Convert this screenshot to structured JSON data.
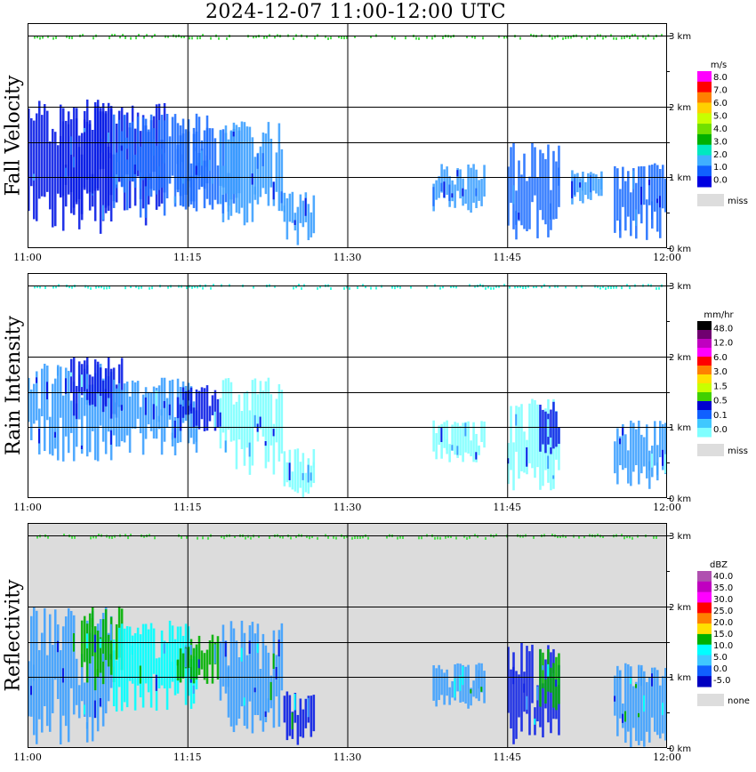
{
  "title": "2024-12-07   11:00-12:00 UTC",
  "x_ticks": [
    "11:00",
    "11:15",
    "11:30",
    "11:45",
    "12:00"
  ],
  "km_labels": [
    "3 km",
    "2 km",
    "1 km",
    "0 km"
  ],
  "chart_data": [
    {
      "type": "heatmap",
      "title": "Fall Velocity",
      "ylabel": "Fall Velocity",
      "x_range": [
        "11:00",
        "12:00"
      ],
      "y_range_km": [
        0,
        3
      ],
      "background": "#ffffff",
      "colorbar": {
        "unit": "m/s",
        "labels": [
          "8.0",
          "7.0",
          "6.0",
          "5.0",
          "4.0",
          "3.0",
          "2.0",
          "1.0",
          "0.0"
        ],
        "colors": [
          "#ff00ff",
          "#ff0000",
          "#ff8000",
          "#ffd000",
          "#c8ff00",
          "#70e000",
          "#00b000",
          "#00e8c0",
          "#40b0ff",
          "#1060ff",
          "#0000e0"
        ],
        "miss_label": "miss",
        "miss_color": "#dddddd"
      },
      "dominant_colors": [
        "#0a1ee6",
        "#1f6fff",
        "#3ca0ff"
      ],
      "echoes": [
        {
          "t0": 0,
          "t1": 8,
          "ytop": 2.1,
          "ybot": 0.2,
          "c": "#0a1ee6"
        },
        {
          "t0": 3,
          "t1": 13,
          "ytop": 2.05,
          "ybot": 0.3,
          "c": "#0a1ee6"
        },
        {
          "t0": 8,
          "t1": 17,
          "ytop": 1.9,
          "ybot": 0.4,
          "c": "#1f6fff"
        },
        {
          "t0": 14,
          "t1": 20,
          "ytop": 1.7,
          "ybot": 0.5,
          "c": "#1f6fff"
        },
        {
          "t0": 18,
          "t1": 24,
          "ytop": 1.8,
          "ybot": 0.3,
          "c": "#3ca0ff"
        },
        {
          "t0": 24,
          "t1": 27,
          "ytop": 0.8,
          "ybot": 0.0,
          "c": "#3ca0ff"
        },
        {
          "t0": 38,
          "t1": 43,
          "ytop": 1.2,
          "ybot": 0.5,
          "c": "#3ca0ff"
        },
        {
          "t0": 45,
          "t1": 50,
          "ytop": 1.5,
          "ybot": 0.1,
          "c": "#1f6fff"
        },
        {
          "t0": 51,
          "t1": 54,
          "ytop": 1.1,
          "ybot": 0.6,
          "c": "#3ca0ff"
        },
        {
          "t0": 55,
          "t1": 60,
          "ytop": 1.2,
          "ybot": 0.1,
          "c": "#1f6fff"
        }
      ]
    },
    {
      "type": "heatmap",
      "title": "Rain Intensity",
      "ylabel": "Rain Intensity",
      "x_range": [
        "11:00",
        "12:00"
      ],
      "y_range_km": [
        0,
        3
      ],
      "background": "#ffffff",
      "colorbar": {
        "unit": "mm/hr",
        "labels": [
          "48.0",
          "12.0",
          "6.0",
          "3.0",
          "1.5",
          "0.5",
          "0.1",
          "0.0"
        ],
        "colors": [
          "#000000",
          "#700070",
          "#c000c0",
          "#ff00ff",
          "#ff0000",
          "#ff8000",
          "#ffe000",
          "#c8ff00",
          "#40d000",
          "#0000d0",
          "#1060ff",
          "#40c8ff",
          "#80ffff"
        ],
        "miss_label": "miss",
        "miss_color": "#dddddd"
      },
      "dominant_colors": [
        "#0a1ee6",
        "#3ca0ff",
        "#80ffff"
      ],
      "echoes": [
        {
          "t0": 0,
          "t1": 8,
          "ytop": 1.9,
          "ybot": 0.5,
          "c": "#3ca0ff"
        },
        {
          "t0": 4,
          "t1": 9,
          "ytop": 2.0,
          "ybot": 1.1,
          "c": "#0a1ee6"
        },
        {
          "t0": 8,
          "t1": 16,
          "ytop": 1.7,
          "ybot": 0.6,
          "c": "#3ca0ff"
        },
        {
          "t0": 14,
          "t1": 18,
          "ytop": 1.6,
          "ybot": 0.9,
          "c": "#0a1ee6"
        },
        {
          "t0": 18,
          "t1": 24,
          "ytop": 1.7,
          "ybot": 0.3,
          "c": "#80ffff"
        },
        {
          "t0": 24,
          "t1": 27,
          "ytop": 0.7,
          "ybot": 0.0,
          "c": "#80ffff"
        },
        {
          "t0": 38,
          "t1": 43,
          "ytop": 1.1,
          "ybot": 0.5,
          "c": "#80ffff"
        },
        {
          "t0": 45,
          "t1": 50,
          "ytop": 1.4,
          "ybot": 0.1,
          "c": "#80ffff"
        },
        {
          "t0": 48,
          "t1": 50,
          "ytop": 1.4,
          "ybot": 0.6,
          "c": "#0a1ee6"
        },
        {
          "t0": 55,
          "t1": 60,
          "ytop": 1.1,
          "ybot": 0.1,
          "c": "#3ca0ff"
        }
      ]
    },
    {
      "type": "heatmap",
      "title": "Reflectivity",
      "ylabel": "Reflectivity",
      "x_range": [
        "11:00",
        "12:00"
      ],
      "y_range_km": [
        0,
        3
      ],
      "background": "#dcdcdc",
      "colorbar": {
        "unit": "dBZ",
        "labels": [
          "40.0",
          "35.0",
          "30.0",
          "25.0",
          "20.0",
          "15.0",
          "10.0",
          "5.0",
          "0.0",
          "-5.0"
        ],
        "colors": [
          "#b050b0",
          "#c000c0",
          "#ff00ff",
          "#ff0000",
          "#ff8000",
          "#ffe000",
          "#00b000",
          "#00ffff",
          "#40c8ff",
          "#1060ff",
          "#0000c0"
        ],
        "miss_label": "none",
        "miss_color": "#dddddd"
      },
      "dominant_colors": [
        "#0a1ee6",
        "#3ca0ff",
        "#00ffff",
        "#00b000"
      ],
      "echoes": [
        {
          "t0": 0,
          "t1": 8,
          "ytop": 2.0,
          "ybot": 0.0,
          "c": "#3ca0ff"
        },
        {
          "t0": 5,
          "t1": 9,
          "ytop": 2.0,
          "ybot": 0.8,
          "c": "#00b000"
        },
        {
          "t0": 8,
          "t1": 16,
          "ytop": 1.8,
          "ybot": 0.5,
          "c": "#00ffff"
        },
        {
          "t0": 14,
          "t1": 18,
          "ytop": 1.6,
          "ybot": 0.9,
          "c": "#00b000"
        },
        {
          "t0": 18,
          "t1": 24,
          "ytop": 1.8,
          "ybot": 0.2,
          "c": "#3ca0ff"
        },
        {
          "t0": 24,
          "t1": 27,
          "ytop": 0.8,
          "ybot": 0.0,
          "c": "#0a1ee6"
        },
        {
          "t0": 38,
          "t1": 43,
          "ytop": 1.2,
          "ybot": 0.5,
          "c": "#3ca0ff"
        },
        {
          "t0": 45,
          "t1": 50,
          "ytop": 1.5,
          "ybot": 0.0,
          "c": "#0a1ee6"
        },
        {
          "t0": 48,
          "t1": 50,
          "ytop": 1.4,
          "ybot": 0.5,
          "c": "#00b000"
        },
        {
          "t0": 55,
          "t1": 60,
          "ytop": 1.2,
          "ybot": 0.0,
          "c": "#3ca0ff"
        }
      ]
    }
  ]
}
